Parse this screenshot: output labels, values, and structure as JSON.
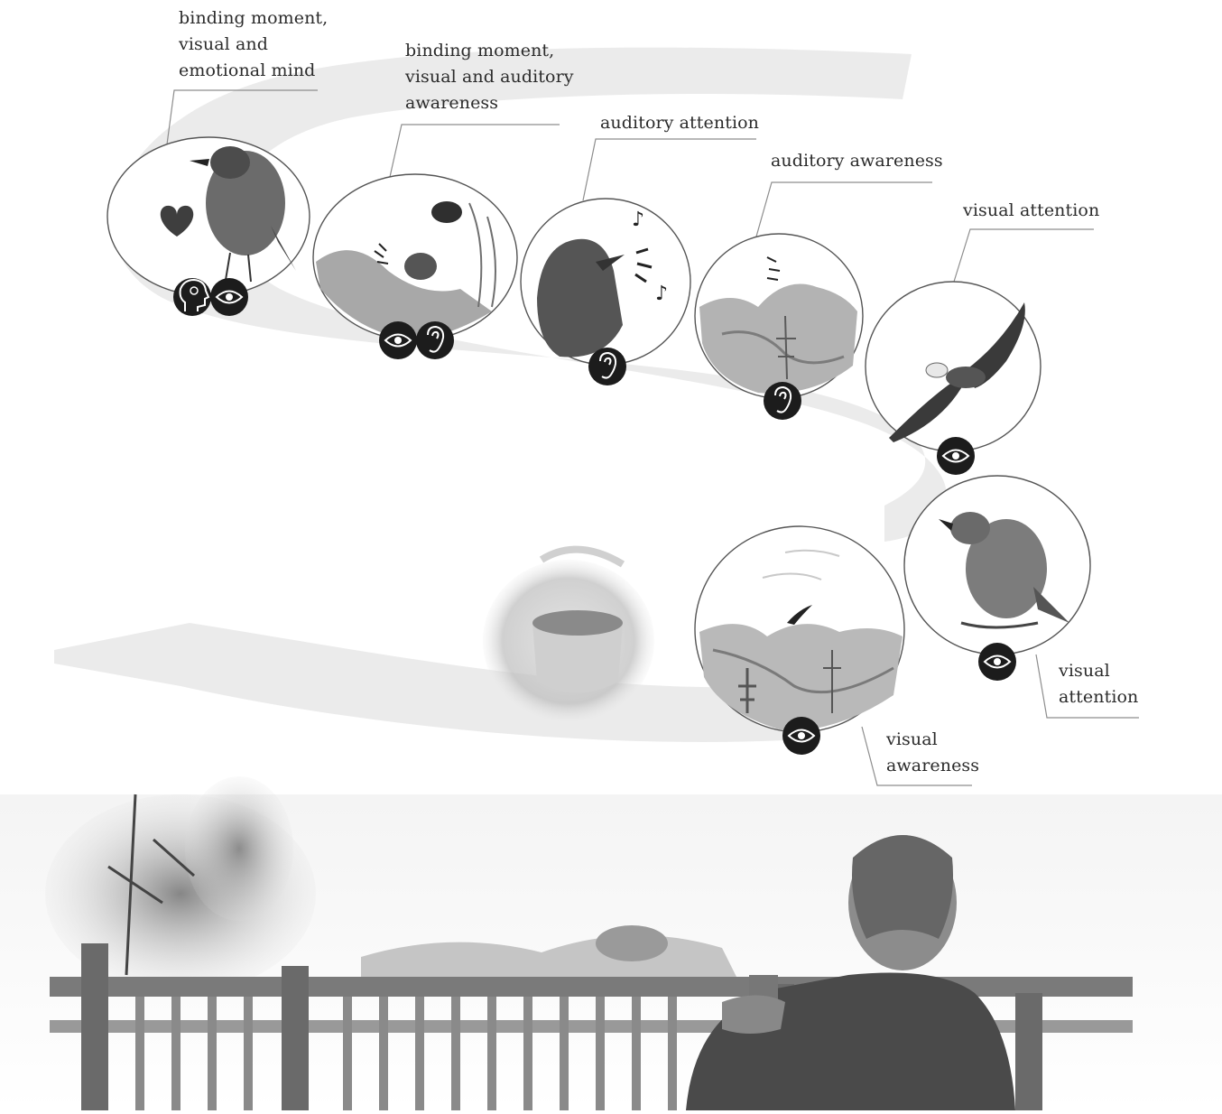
{
  "labels": {
    "emotional": [
      "binding moment,",
      "visual and",
      "emotional mind"
    ],
    "visual_auditory": [
      "binding moment,",
      "visual and auditory",
      "awareness"
    ],
    "auditory_attention": [
      "auditory attention"
    ],
    "auditory_awareness": [
      "auditory awareness"
    ],
    "visual_attention_top": [
      "visual attention"
    ],
    "visual_attention_right": [
      "visual",
      "attention"
    ],
    "visual_awareness": [
      "visual",
      "awareness"
    ]
  },
  "icons": {
    "eye": "eye-icon",
    "ear": "ear-icon",
    "head": "head-icon",
    "heart": "heart-icon"
  },
  "colors": {
    "band": "#ececec",
    "ink": "#1c1c1c",
    "line": "#8a8a8a"
  }
}
